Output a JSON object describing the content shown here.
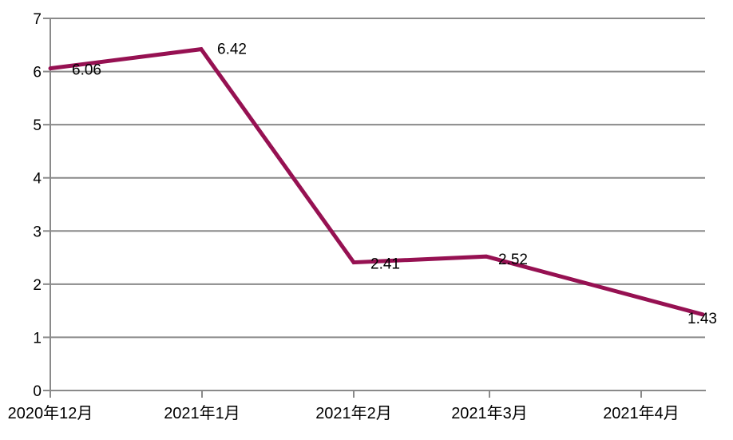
{
  "chart_data": {
    "type": "line",
    "categories": [
      "2020年12月",
      "2021年1月",
      "2021年2月",
      "2021年3月",
      "2021年4月"
    ],
    "series": [
      {
        "name": "value",
        "values": [
          6.06,
          6.42,
          2.41,
          2.52,
          1.43
        ]
      }
    ],
    "point_labels": [
      "6.06",
      "6.42",
      "2.41",
      "2.52",
      "1.43"
    ],
    "title": "",
    "xlabel": "",
    "ylabel": "",
    "ylim": [
      0,
      7
    ],
    "yticks": [
      0,
      1,
      2,
      3,
      4,
      5,
      6,
      7
    ],
    "grid": "horizontal",
    "legend": "none",
    "colors": {
      "line": "#961152",
      "grid": "#8a8a8a",
      "axis": "#8a8a8a",
      "text": "#000000",
      "background": "#ffffff"
    }
  }
}
